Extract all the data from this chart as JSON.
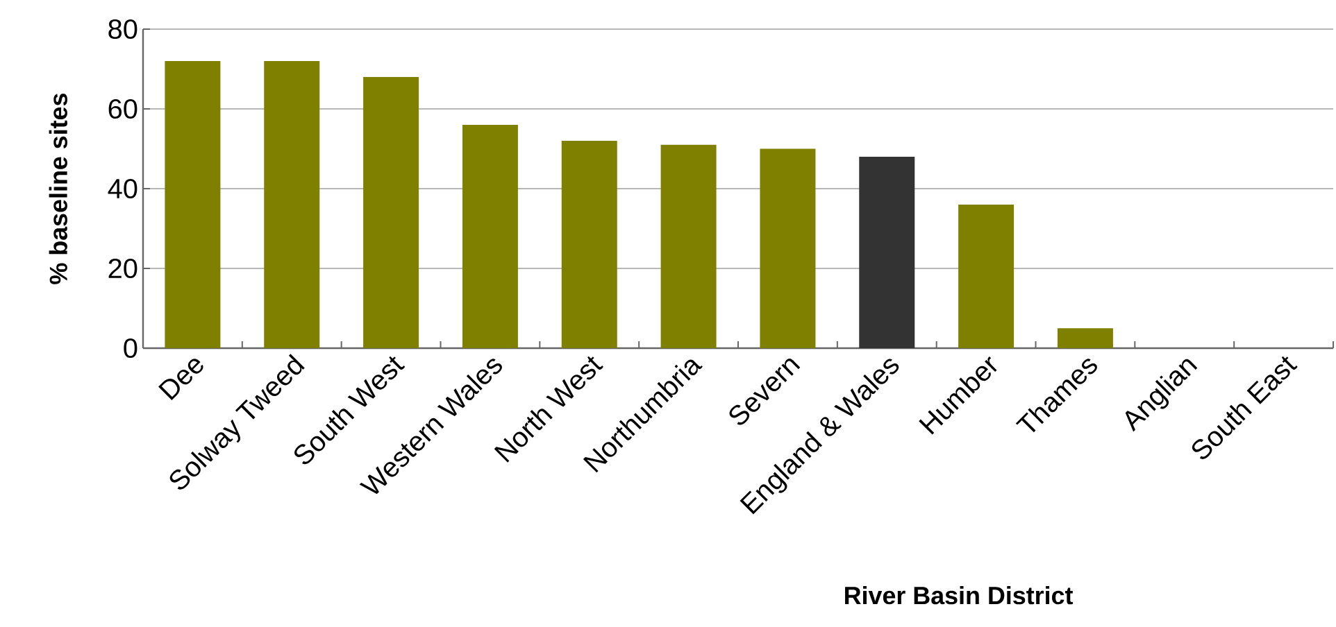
{
  "chart_data": {
    "type": "bar",
    "xlabel": "River Basin District",
    "ylabel": "% baseline sites",
    "categories": [
      "Dee",
      "Solway Tweed",
      "South West",
      "Western Wales",
      "North West",
      "Northumbria",
      "Severn",
      "England & Wales",
      "Humber",
      "Thames",
      "Anglian",
      "South East"
    ],
    "values": [
      72,
      72,
      68,
      56,
      52,
      51,
      50,
      48,
      36,
      5,
      0,
      0
    ],
    "colors": [
      "#808000",
      "#808000",
      "#808000",
      "#808000",
      "#808000",
      "#808000",
      "#808000",
      "#333333",
      "#808000",
      "#808000",
      "#808000",
      "#808000"
    ],
    "ylim": [
      0,
      80
    ],
    "yticks": [
      0,
      20,
      40,
      60,
      80
    ],
    "grid": "y"
  }
}
